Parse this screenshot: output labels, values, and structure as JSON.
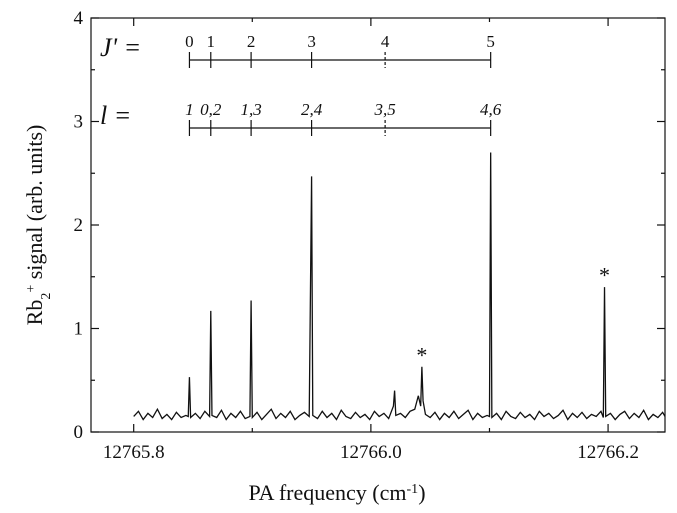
{
  "chart_data": {
    "type": "line",
    "x_label": {
      "text": "PA frequency (cm",
      "sup": "-1",
      "end": ")"
    },
    "y_label": {
      "text": "Rb",
      "sub": "2",
      "sup": "+",
      "end": " signal (arb. units)"
    },
    "color": "#111111",
    "xlim": [
      12765.764,
      12766.248
    ],
    "ylim": [
      0,
      4
    ],
    "xticks": [
      12765.8,
      {
        "value": 12766,
        "label": "12766.0"
      },
      12766.2
    ],
    "xminorticks": [
      12765.9,
      12766.1
    ],
    "yticks": [
      0,
      1,
      2,
      3,
      4
    ],
    "yminorticks": [
      0.5,
      1.5,
      2.5,
      3.5
    ],
    "x": [
      12765.8,
      12765.804,
      12765.808,
      12765.812,
      12765.816,
      12765.82,
      12765.824,
      12765.828,
      12765.832,
      12765.836,
      12765.84,
      12765.844,
      12765.846,
      12765.847,
      12765.848,
      12765.852,
      12765.856,
      12765.86,
      12765.864,
      12765.865,
      12765.866,
      12765.87,
      12765.874,
      12765.878,
      12765.882,
      12765.886,
      12765.89,
      12765.894,
      12765.898,
      12765.899,
      12765.9,
      12765.904,
      12765.908,
      12765.912,
      12765.916,
      12765.92,
      12765.924,
      12765.928,
      12765.932,
      12765.936,
      12765.94,
      12765.944,
      12765.948,
      12765.95,
      12765.951,
      12765.955,
      12765.959,
      12765.963,
      12765.967,
      12765.971,
      12765.975,
      12765.979,
      12765.983,
      12765.987,
      12765.991,
      12765.995,
      12765.999,
      12766.003,
      12766.007,
      12766.011,
      12766.015,
      12766.019,
      12766.02,
      12766.021,
      12766.025,
      12766.029,
      12766.033,
      12766.037,
      12766.04,
      12766.042,
      12766.043,
      12766.044,
      12766.046,
      12766.05,
      12766.054,
      12766.058,
      12766.062,
      12766.066,
      12766.07,
      12766.074,
      12766.078,
      12766.082,
      12766.086,
      12766.09,
      12766.094,
      12766.098,
      12766.1,
      12766.101,
      12766.102,
      12766.106,
      12766.11,
      12766.114,
      12766.118,
      12766.122,
      12766.126,
      12766.13,
      12766.134,
      12766.138,
      12766.142,
      12766.146,
      12766.15,
      12766.154,
      12766.158,
      12766.162,
      12766.166,
      12766.17,
      12766.174,
      12766.178,
      12766.182,
      12766.186,
      12766.19,
      12766.194,
      12766.196,
      12766.197,
      12766.198,
      12766.202,
      12766.206,
      12766.21,
      12766.214,
      12766.218,
      12766.222,
      12766.226,
      12766.23,
      12766.234,
      12766.238,
      12766.242,
      12766.246,
      12766.248
    ],
    "values": [
      0.15,
      0.2,
      0.12,
      0.18,
      0.14,
      0.22,
      0.13,
      0.17,
      0.12,
      0.19,
      0.14,
      0.16,
      0.15,
      0.53,
      0.14,
      0.18,
      0.13,
      0.2,
      0.15,
      1.17,
      0.16,
      0.14,
      0.21,
      0.12,
      0.18,
      0.14,
      0.2,
      0.13,
      0.15,
      1.27,
      0.14,
      0.19,
      0.12,
      0.17,
      0.22,
      0.13,
      0.18,
      0.14,
      0.2,
      0.12,
      0.16,
      0.19,
      0.15,
      2.47,
      0.16,
      0.13,
      0.2,
      0.14,
      0.18,
      0.12,
      0.21,
      0.15,
      0.13,
      0.19,
      0.14,
      0.17,
      0.12,
      0.2,
      0.15,
      0.18,
      0.13,
      0.25,
      0.4,
      0.16,
      0.18,
      0.14,
      0.2,
      0.22,
      0.35,
      0.25,
      0.63,
      0.3,
      0.17,
      0.14,
      0.19,
      0.12,
      0.18,
      0.14,
      0.2,
      0.13,
      0.17,
      0.21,
      0.12,
      0.18,
      0.14,
      0.16,
      0.15,
      2.7,
      0.14,
      0.18,
      0.12,
      0.2,
      0.15,
      0.13,
      0.19,
      0.14,
      0.17,
      0.12,
      0.2,
      0.15,
      0.18,
      0.13,
      0.16,
      0.21,
      0.12,
      0.18,
      0.14,
      0.19,
      0.13,
      0.17,
      0.15,
      0.2,
      0.14,
      1.4,
      0.15,
      0.18,
      0.12,
      0.17,
      0.2,
      0.13,
      0.18,
      0.14,
      0.21,
      0.12,
      0.17,
      0.14,
      0.19,
      0.15
    ],
    "annotations": [
      {
        "text": "*",
        "x": 12766.043,
        "y": 0.75
      },
      {
        "text": "*",
        "x": 12766.197,
        "y": 1.52
      }
    ],
    "ladders": [
      {
        "label": "J' =",
        "italic_ticks": false,
        "ticks": [
          {
            "x": 12765.847,
            "label": "0"
          },
          {
            "x": 12765.865,
            "label": "1"
          },
          {
            "x": 12765.899,
            "label": "2"
          },
          {
            "x": 12765.95,
            "label": "3"
          },
          {
            "x": 12766.012,
            "label": "4",
            "dashed": true
          },
          {
            "x": 12766.101,
            "label": "5"
          }
        ]
      },
      {
        "label": "l =",
        "italic_ticks": true,
        "ticks": [
          {
            "x": 12765.847,
            "label": "1"
          },
          {
            "x": 12765.865,
            "label": "0,2"
          },
          {
            "x": 12765.899,
            "label": "1,3"
          },
          {
            "x": 12765.95,
            "label": "2,4"
          },
          {
            "x": 12766.012,
            "label": "3,5",
            "dashed": true
          },
          {
            "x": 12766.101,
            "label": "4,6"
          }
        ]
      }
    ]
  }
}
